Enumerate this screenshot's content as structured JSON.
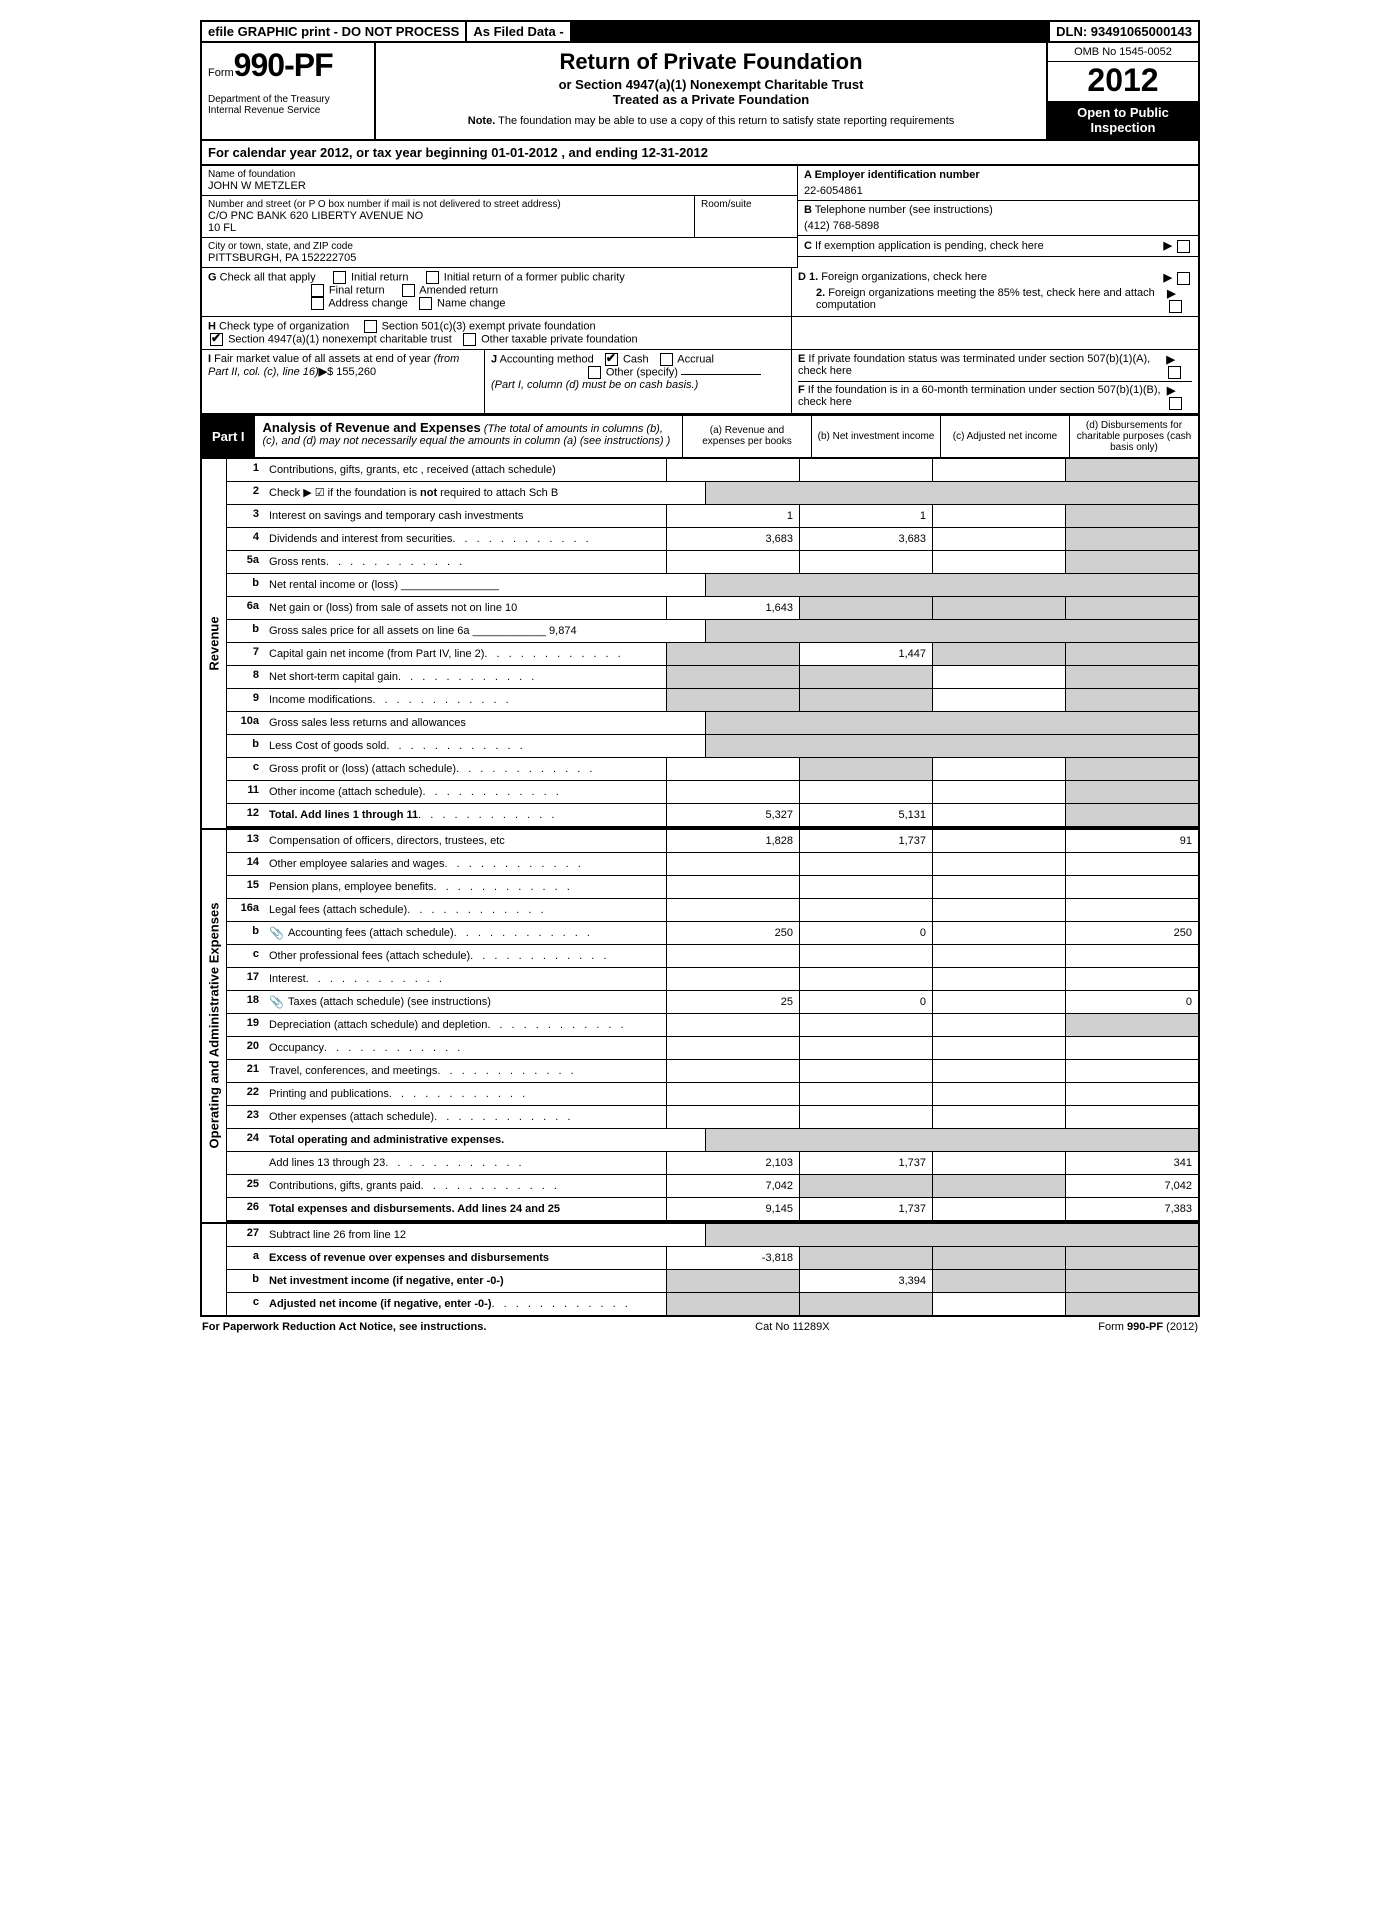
{
  "top": {
    "efile": "efile GRAPHIC print - DO NOT PROCESS",
    "asFiled": "As Filed Data -",
    "dln": "DLN: 93491065000143"
  },
  "header": {
    "formWord": "Form",
    "formNo": "990-PF",
    "dept": "Department of the Treasury",
    "irs": "Internal Revenue Service",
    "title": "Return of Private Foundation",
    "sub1": "or Section 4947(a)(1) Nonexempt Charitable Trust",
    "sub2": "Treated as a Private Foundation",
    "noteLabel": "Note.",
    "note": " The foundation may be able to use a copy of this return to satisfy state reporting requirements",
    "omb": "OMB No 1545-0052",
    "year": "2012",
    "open": "Open to Public Inspection"
  },
  "calYear": "For calendar year 2012, or tax year beginning 01-01-2012      , and ending 12-31-2012",
  "info": {
    "nameLbl": "Name of foundation",
    "name": "JOHN W METZLER",
    "addrLbl": "Number and street (or P O  box number if mail is not delivered to street address)",
    "roomLbl": "Room/suite",
    "addr": "C/O PNC BANK 620 LIBERTY AVENUE NO",
    "addr2": "10 FL",
    "cityLbl": "City or town, state, and ZIP code",
    "city": "PITTSBURGH, PA  152222705",
    "einLbl": "A Employer identification number",
    "ein": "22-6054861",
    "telLbl": "B",
    "telTxt": " Telephone number (see instructions)",
    "tel": "(412) 768-5898",
    "cLbl": "C",
    "cTxt": " If exemption application is pending, check here",
    "gLbl": "G",
    "gTxt": " Check all that apply",
    "gOpts": [
      "Initial return",
      "Initial return of a former public charity",
      "Final return",
      "Amended return",
      "Address change",
      "Name change"
    ],
    "d1": "D 1.",
    "d1Txt": " Foreign organizations, check here",
    "d2": "2.",
    "d2Txt": " Foreign organizations meeting the 85% test, check here and attach computation",
    "hLbl": "H",
    "hTxt": " Check type of organization",
    "hOpts": [
      "Section 501(c)(3) exempt private foundation",
      "Section 4947(a)(1) nonexempt charitable trust",
      "Other taxable private foundation"
    ],
    "iLbl": "I",
    "iTxt": " Fair market value of all assets at end of year ",
    "iTxt2": "(from Part II, col. (c), line 16)",
    "iVal": "$  155,260",
    "jLbl": "J",
    "jTxt": " Accounting method",
    "jCash": "Cash",
    "jAccrual": "Accrual",
    "jOther": "Other (specify)",
    "jNote": "(Part I, column (d) must be on cash basis.)",
    "eLbl": "E",
    "eTxt": " If private foundation status was terminated under section 507(b)(1)(A), check here",
    "fLbl": "F",
    "fTxt": " If the foundation is in a 60-month termination under section 507(b)(1)(B), check here"
  },
  "part1": {
    "label": "Part I",
    "title": "Analysis of Revenue and Expenses",
    "titleNote": " (The total of amounts in columns (b), (c), and (d) may not necessarily equal the amounts in column (a) (see instructions) )",
    "cols": [
      "(a) Revenue and expenses per books",
      "(b) Net investment income",
      "(c) Adjusted net income",
      "(d) Disbursements for charitable purposes (cash basis only)"
    ]
  },
  "sideLabels": [
    "Revenue",
    "Operating and Administrative Expenses"
  ],
  "rows": [
    {
      "n": "1",
      "d": "Contributions, gifts, grants, etc , received (attach schedule)",
      "a": "",
      "b": "",
      "c": "",
      "dShade": true
    },
    {
      "n": "2",
      "d": "Check ▶ ☑ if the foundation is not required to attach Sch  B",
      "noVals": true,
      "boldNot": true
    },
    {
      "n": "3",
      "d": "Interest on savings and temporary cash investments",
      "a": "1",
      "b": "1",
      "c": "",
      "dShade": true
    },
    {
      "n": "4",
      "d": "Dividends and interest from securities",
      "dots": true,
      "a": "3,683",
      "b": "3,683",
      "c": "",
      "dShade": true
    },
    {
      "n": "5a",
      "d": "Gross rents",
      "dots": true,
      "a": "",
      "b": "",
      "c": "",
      "dShade": true
    },
    {
      "n": "b",
      "d": "Net rental income or (loss) ________________",
      "noVals": true
    },
    {
      "n": "6a",
      "d": "Net gain or (loss) from sale of assets not on line 10",
      "a": "1,643",
      "bShade": true,
      "cShade": true,
      "dShade": true
    },
    {
      "n": "b",
      "d": "Gross sales price for all assets on line 6a ____________ 9,874",
      "noVals": true
    },
    {
      "n": "7",
      "d": "Capital gain net income (from Part IV, line 2)",
      "dots": true,
      "aShade": true,
      "b": "1,447",
      "cShade": true,
      "dShade": true
    },
    {
      "n": "8",
      "d": "Net short-term capital gain",
      "dots": true,
      "aShade": true,
      "bShade": true,
      "c": "",
      "dShade": true
    },
    {
      "n": "9",
      "d": "Income modifications",
      "dots": true,
      "aShade": true,
      "bShade": true,
      "c": "",
      "dShade": true
    },
    {
      "n": "10a",
      "d": "Gross sales less returns and allowances",
      "noVals": true,
      "split": true
    },
    {
      "n": "b",
      "d": "Less  Cost of goods sold",
      "dots": true,
      "noVals": true,
      "split": true
    },
    {
      "n": "c",
      "d": "Gross profit or (loss) (attach schedule)",
      "dots": true,
      "aShade": false,
      "bShade": true,
      "c": "",
      "dShade": true
    },
    {
      "n": "11",
      "d": "Other income (attach schedule)",
      "dots": true,
      "a": "",
      "b": "",
      "c": "",
      "dShade": true
    },
    {
      "n": "12",
      "d": "Total. Add lines 1 through 11",
      "bold": true,
      "dots": true,
      "a": "5,327",
      "b": "5,131",
      "c": "",
      "dShade": true,
      "bb2": true
    }
  ],
  "expRows": [
    {
      "n": "13",
      "d": "Compensation of officers, directors, trustees, etc",
      "a": "1,828",
      "b": "1,737",
      "c": "",
      "dv": "91"
    },
    {
      "n": "14",
      "d": "Other employee salaries and wages",
      "dots": true
    },
    {
      "n": "15",
      "d": "Pension plans, employee benefits",
      "dots": true
    },
    {
      "n": "16a",
      "d": "Legal fees (attach schedule)",
      "dots": true
    },
    {
      "n": "b",
      "d": "Accounting fees (attach schedule)",
      "dots": true,
      "icon": true,
      "a": "250",
      "b": "0",
      "c": "",
      "dv": "250"
    },
    {
      "n": "c",
      "d": "Other professional fees (attach schedule)",
      "dots": true
    },
    {
      "n": "17",
      "d": "Interest",
      "dots": true
    },
    {
      "n": "18",
      "d": "Taxes (attach schedule) (see instructions)",
      "icon": true,
      "a": "25",
      "b": "0",
      "c": "",
      "dv": "0"
    },
    {
      "n": "19",
      "d": "Depreciation (attach schedule) and depletion",
      "dots": true,
      "dShade": true
    },
    {
      "n": "20",
      "d": "Occupancy",
      "dots": true
    },
    {
      "n": "21",
      "d": "Travel, conferences, and meetings",
      "dots": true
    },
    {
      "n": "22",
      "d": "Printing and publications",
      "dots": true
    },
    {
      "n": "23",
      "d": "Other expenses (attach schedule)",
      "dots": true
    },
    {
      "n": "24",
      "d": "Total operating and administrative expenses.",
      "bold": true,
      "noVals": true
    },
    {
      "n": "",
      "d": "Add lines 13 through 23",
      "dots": true,
      "a": "2,103",
      "b": "1,737",
      "c": "",
      "dv": "341"
    },
    {
      "n": "25",
      "d": "Contributions, gifts, grants paid",
      "dots": true,
      "a": "7,042",
      "bShade": true,
      "cShade": true,
      "dv": "7,042"
    },
    {
      "n": "26",
      "d": "Total expenses and disbursements. Add lines 24 and 25",
      "bold": true,
      "a": "9,145",
      "b": "1,737",
      "c": "",
      "dv": "7,383",
      "bb2": true
    }
  ],
  "bottomRows": [
    {
      "n": "27",
      "d": "Subtract line 26 from line 12",
      "noVals": true
    },
    {
      "n": "a",
      "d": "Excess of revenue over expenses and disbursements",
      "bold": true,
      "a": "-3,818",
      "bShade": true,
      "cShade": true,
      "dShade": true
    },
    {
      "n": "b",
      "d": "Net investment income (if negative, enter -0-)",
      "bold": true,
      "aShade": true,
      "b": "3,394",
      "cShade": true,
      "dShade": true
    },
    {
      "n": "c",
      "d": "Adjusted net income (if negative, enter -0-)",
      "bold": true,
      "dots": true,
      "aShade": true,
      "bShade": true,
      "c": "",
      "dShade": true
    }
  ],
  "footer": {
    "left": "For Paperwork Reduction Act Notice, see instructions.",
    "mid": "Cat No  11289X",
    "right": "Form 990-PF (2012)"
  }
}
